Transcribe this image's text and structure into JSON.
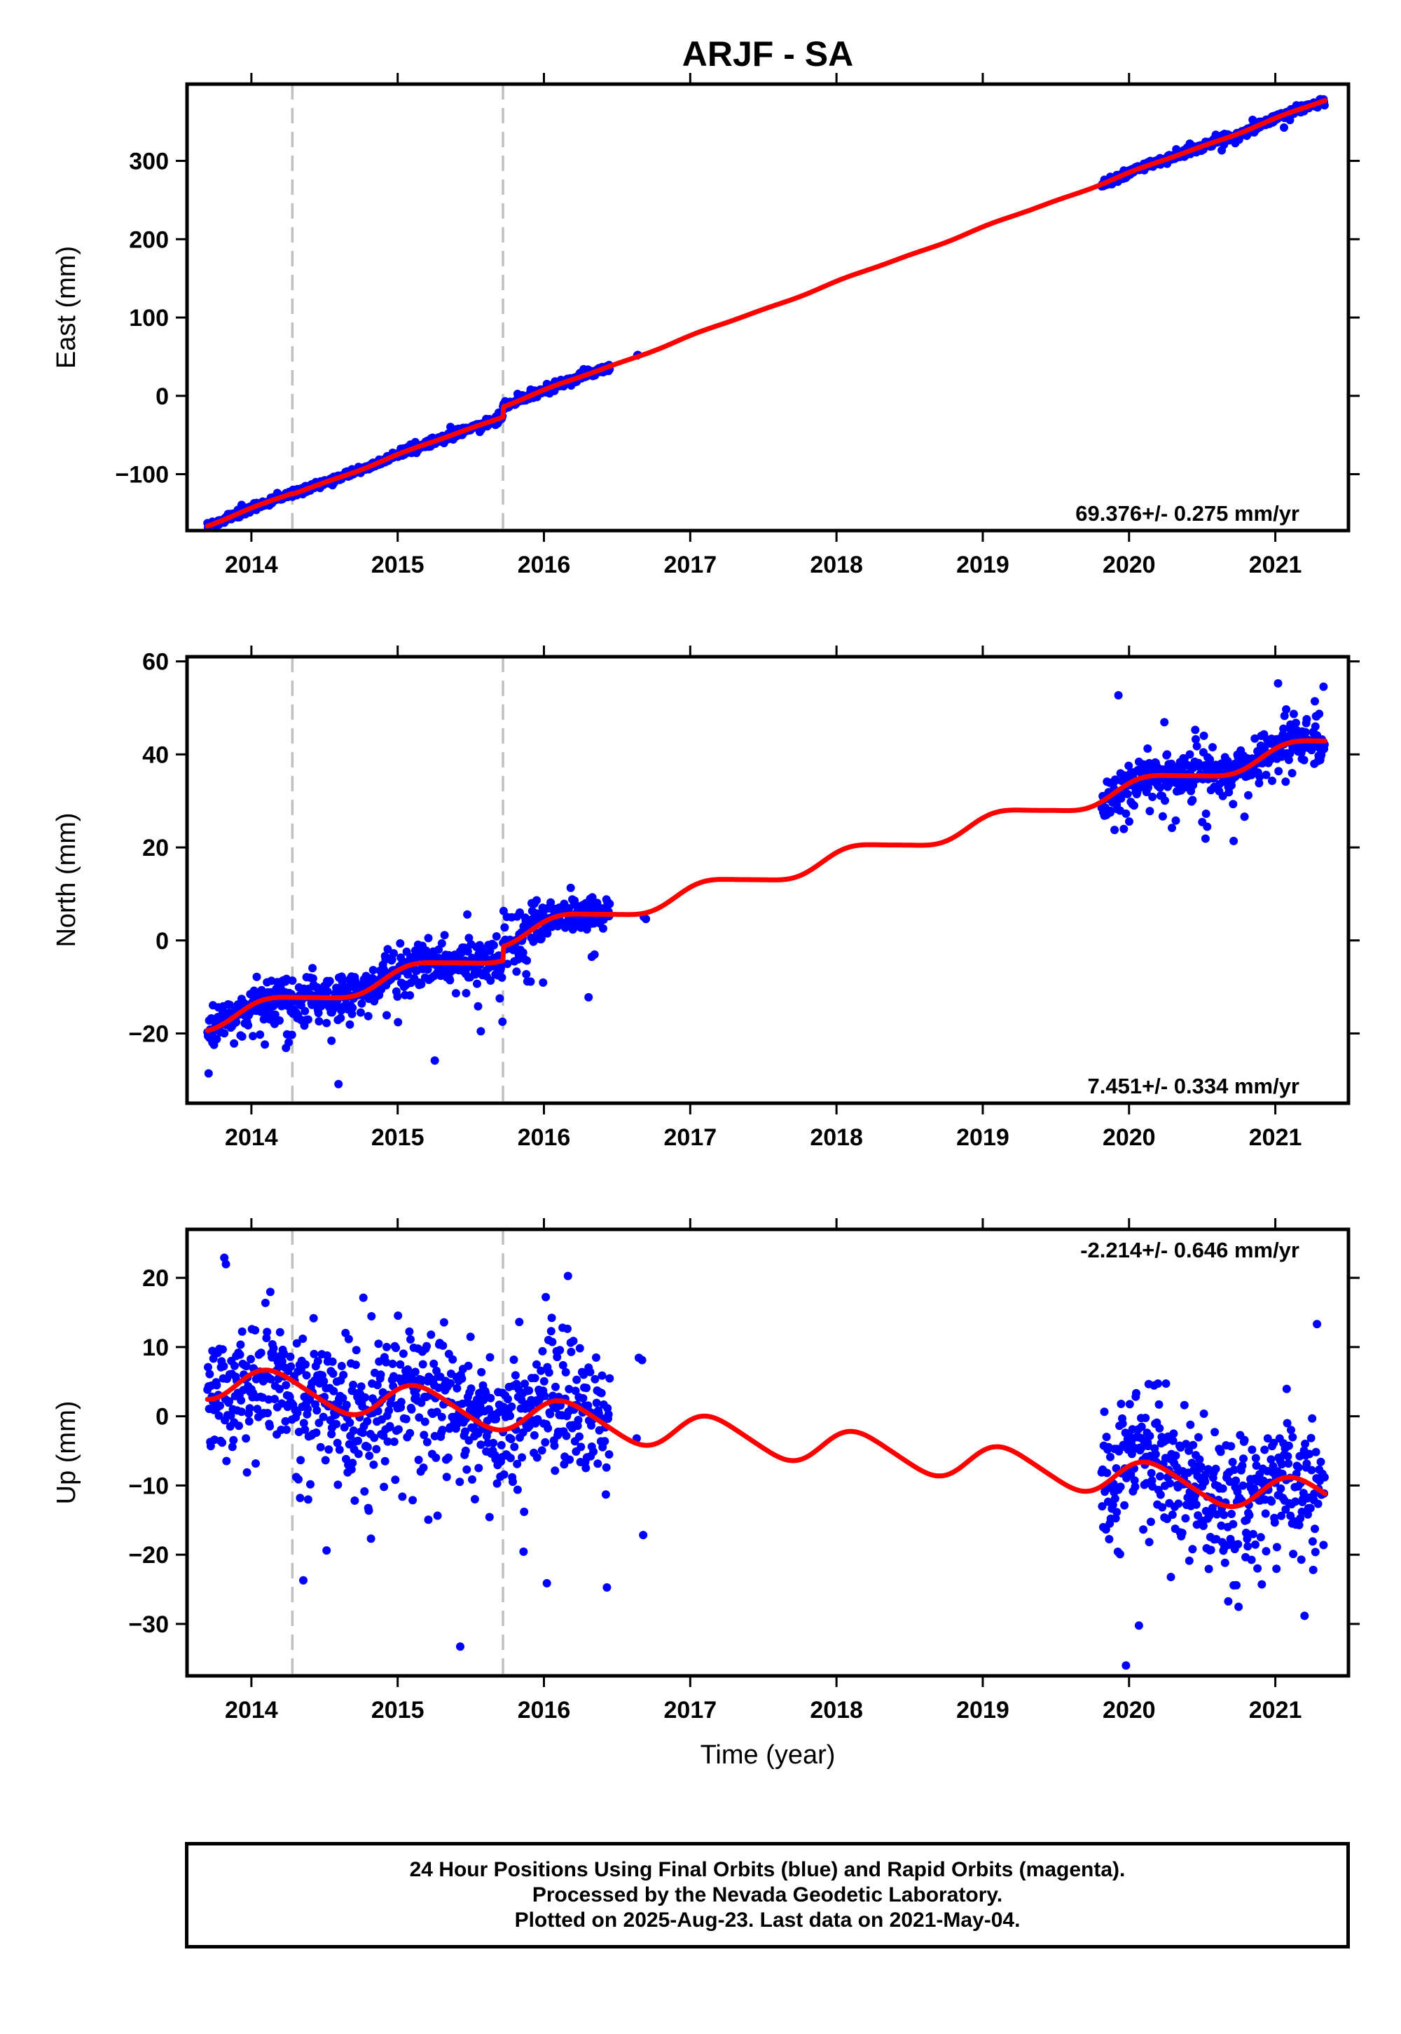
{
  "chart_data": {
    "type": "scatter",
    "title": "ARJF - SA",
    "xlabel": "Time (year)",
    "x_ticks": [
      2014,
      2015,
      2016,
      2017,
      2018,
      2019,
      2020,
      2021
    ],
    "xlim": [
      2013.56,
      2021.5
    ],
    "offset_lines_x": [
      2014.28,
      2015.72
    ],
    "data_gaps": [
      [
        2016.45,
        2016.62
      ],
      [
        2016.72,
        2019.81
      ]
    ],
    "colors": {
      "observations": "#0000ff",
      "model": "#ff0000",
      "offset_lines": "#c0c0c0"
    },
    "panels": [
      {
        "name": "east",
        "ylabel": "East (mm)",
        "ylim": [
          -172,
          398
        ],
        "y_ticks": [
          -100,
          0,
          100,
          200,
          300
        ],
        "rate_label": "69.376+/- 0.275 mm/yr",
        "rate_position": "bottom-right",
        "rate_mm_per_yr": 69.376,
        "offsets": [
          {
            "x": 2014.28,
            "mm": -1
          },
          {
            "x": 2015.72,
            "mm": 13
          }
        ],
        "seasonal": {
          "annual_amp": 1.0,
          "semiannual_amp": 0.5
        },
        "intercept_2013_7": -165,
        "scatter_sigma": 2.5,
        "outlier_sigma": 6
      },
      {
        "name": "north",
        "ylabel": "North (mm)",
        "ylim": [
          -35,
          61
        ],
        "y_ticks": [
          -20,
          0,
          20,
          40,
          60
        ],
        "rate_label": "7.451+/- 0.334 mm/yr",
        "rate_position": "bottom-right",
        "rate_mm_per_yr": 7.451,
        "offsets": [
          {
            "x": 2015.72,
            "mm": 3
          }
        ],
        "seasonal": {
          "annual_amp": 1.8,
          "semiannual_amp": 0.3
        },
        "intercept_2013_7": -17.5,
        "scatter_sigma": 2.2,
        "outlier_sigma": 7
      },
      {
        "name": "up",
        "ylabel": "Up (mm)",
        "ylim": [
          -37.5,
          27
        ],
        "y_ticks": [
          -30,
          -20,
          -10,
          0,
          10,
          20
        ],
        "rate_label": "-2.214+/- 0.646 mm/yr",
        "rate_position": "top-right",
        "rate_mm_per_yr": -2.214,
        "offsets": [],
        "seasonal": {
          "annual_amp": 2.5,
          "semiannual_amp": 0.3
        },
        "intercept_2013_7": 5.0,
        "scatter_sigma": 4.5,
        "outlier_sigma": 10
      }
    ]
  },
  "footer": {
    "line1": "24 Hour Positions Using Final Orbits (blue) and Rapid Orbits (magenta).",
    "line2": "Processed by the Nevada Geodetic Laboratory.",
    "line3": "Plotted on 2025-Aug-23. Last data on 2021-May-04."
  }
}
